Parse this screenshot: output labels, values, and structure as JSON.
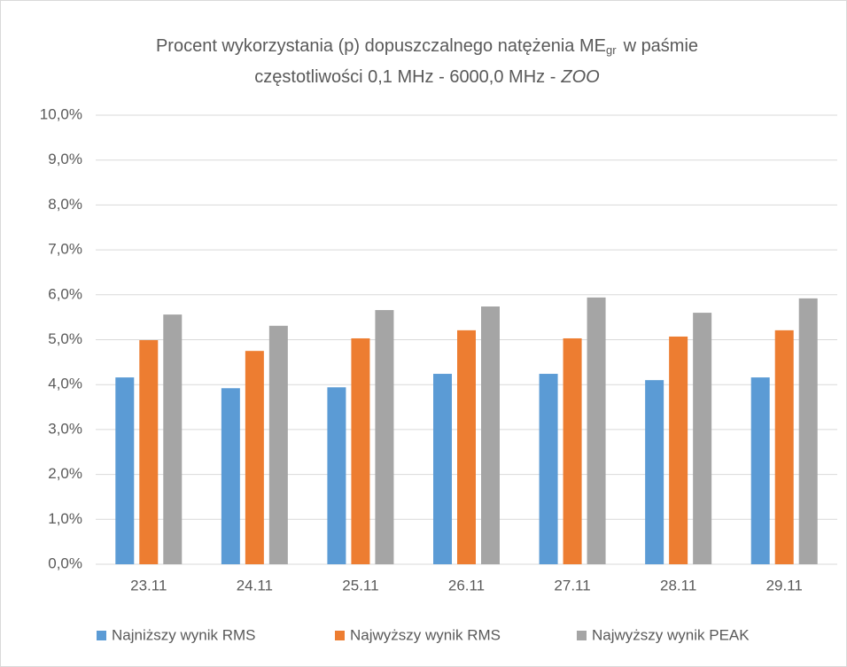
{
  "chart_data": {
    "type": "bar",
    "title": {
      "line1": "Procent wykorzystania (p) dopuszczalnego natężenia ME",
      "subscript": "gr",
      "line1_end": "w paśmie",
      "line2": "częstotliwości 0,1 MHz - 6000,0 MHz -",
      "line2_italic": "ZOO"
    },
    "categories": [
      "23.11",
      "24.11",
      "25.11",
      "26.11",
      "27.11",
      "28.11",
      "29.11"
    ],
    "series": [
      {
        "name": "Najniższy wynik RMS",
        "color": "#5b9bd5",
        "values": [
          4.16,
          3.92,
          3.94,
          4.24,
          4.24,
          4.1,
          4.16
        ]
      },
      {
        "name": "Najwyższy wynik RMS",
        "color": "#ed7d31",
        "values": [
          4.99,
          4.75,
          5.03,
          5.21,
          5.03,
          5.07,
          5.21
        ]
      },
      {
        "name": "Najwyższy wynik PEAK",
        "color": "#a5a5a5",
        "values": [
          5.56,
          5.31,
          5.66,
          5.74,
          5.94,
          5.6,
          5.92
        ]
      }
    ],
    "ylim": [
      0,
      10
    ],
    "yticks": [
      {
        "value": 0,
        "label": "0,0%"
      },
      {
        "value": 1,
        "label": "1,0%"
      },
      {
        "value": 2,
        "label": "2,0%"
      },
      {
        "value": 3,
        "label": "3,0%"
      },
      {
        "value": 4,
        "label": "4,0%"
      },
      {
        "value": 5,
        "label": "5,0%"
      },
      {
        "value": 6,
        "label": "6,0%"
      },
      {
        "value": 7,
        "label": "7,0%"
      },
      {
        "value": 8,
        "label": "8,0%"
      },
      {
        "value": 9,
        "label": "9,0%"
      },
      {
        "value": 10,
        "label": "10,0%"
      }
    ],
    "grid": true,
    "legend": "bottom"
  }
}
